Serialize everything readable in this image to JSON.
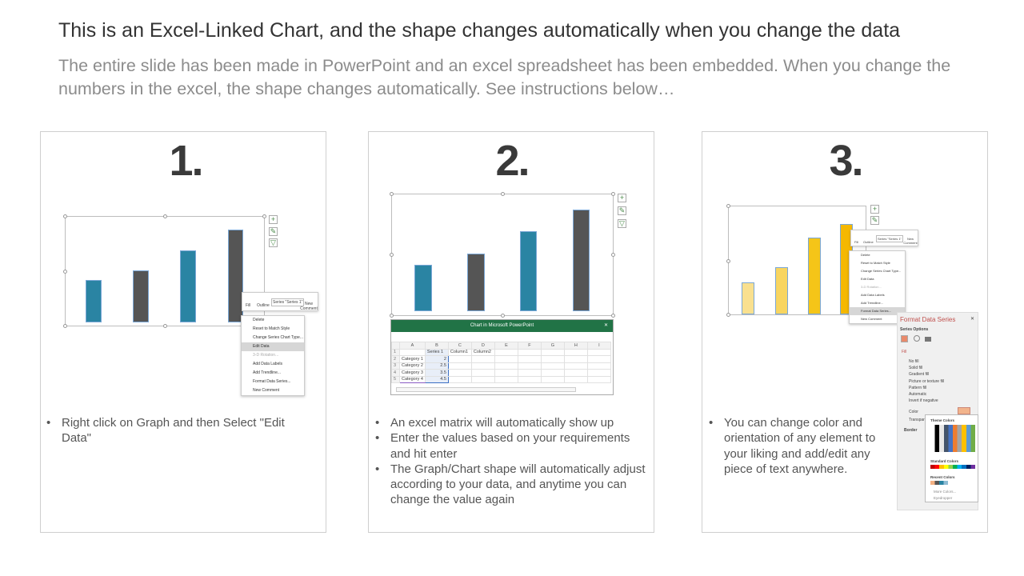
{
  "title": "This is an Excel-Linked Chart, and the shape changes automatically when you change the data",
  "subtitle": "The entire slide has been made in PowerPoint and an excel spreadsheet has been embedded. When you change the numbers in the excel, the shape changes automatically. See instructions below…",
  "colors": {
    "teal": "#2A84A3",
    "dark": "#555555",
    "yellow": "#F5C518",
    "excel_green": "#217346"
  },
  "panels": [
    {
      "number": "1.",
      "bullets": [
        "Right click on Graph and then Select \"Edit Data\""
      ]
    },
    {
      "number": "2.",
      "bullets": [
        "An excel matrix will automatically  show up",
        "Enter the values based on your requirements and hit enter",
        "The Graph/Chart shape will automatically adjust according to your data, and anytime you can change the value again"
      ]
    },
    {
      "number": "3.",
      "bullets": [
        "You can change color and orientation of any element to your liking and add/edit any piece of text anywhere."
      ]
    }
  ],
  "mini_toolbar": {
    "fill": "Fill",
    "outline": "Outline",
    "series": "Series \"Series 1\"",
    "new_comment": "New Comment"
  },
  "context_menu": [
    "Delete",
    "Reset to Match Style",
    "Change Series Chart Type...",
    "Edit Data",
    "3-D Rotation...",
    "Add Data Labels",
    "Add Trendline...",
    "Format Data Series...",
    "New Comment"
  ],
  "excel": {
    "title": "Chart in Microsoft PowerPoint",
    "columns": [
      "A",
      "B",
      "C",
      "D",
      "E",
      "F",
      "G",
      "H",
      "I"
    ],
    "rows": [
      [
        "",
        "Series 1",
        "Column1",
        "Column2"
      ],
      [
        "Category 1",
        "2",
        "",
        ""
      ],
      [
        "Category 2",
        "2.5",
        "",
        ""
      ],
      [
        "Category 3",
        "3.5",
        "",
        ""
      ],
      [
        "Category 4",
        "4.5",
        "",
        ""
      ]
    ]
  },
  "format_pane": {
    "title": "Format Data Series",
    "series_options": "Series Options",
    "fill": "Fill",
    "fill_options": [
      "No fill",
      "Solid fill",
      "Gradient fill",
      "Picture or texture fill",
      "Pattern fill",
      "Automatic",
      "Invert if negative"
    ],
    "color": "Color",
    "transparency": "Transparency",
    "border": "Border",
    "palette": {
      "theme": "Theme Colors",
      "standard": "Standard Colors",
      "recent": "Recent Colors",
      "more": "More Colors...",
      "eyedropper": "Eyedropper"
    }
  }
}
